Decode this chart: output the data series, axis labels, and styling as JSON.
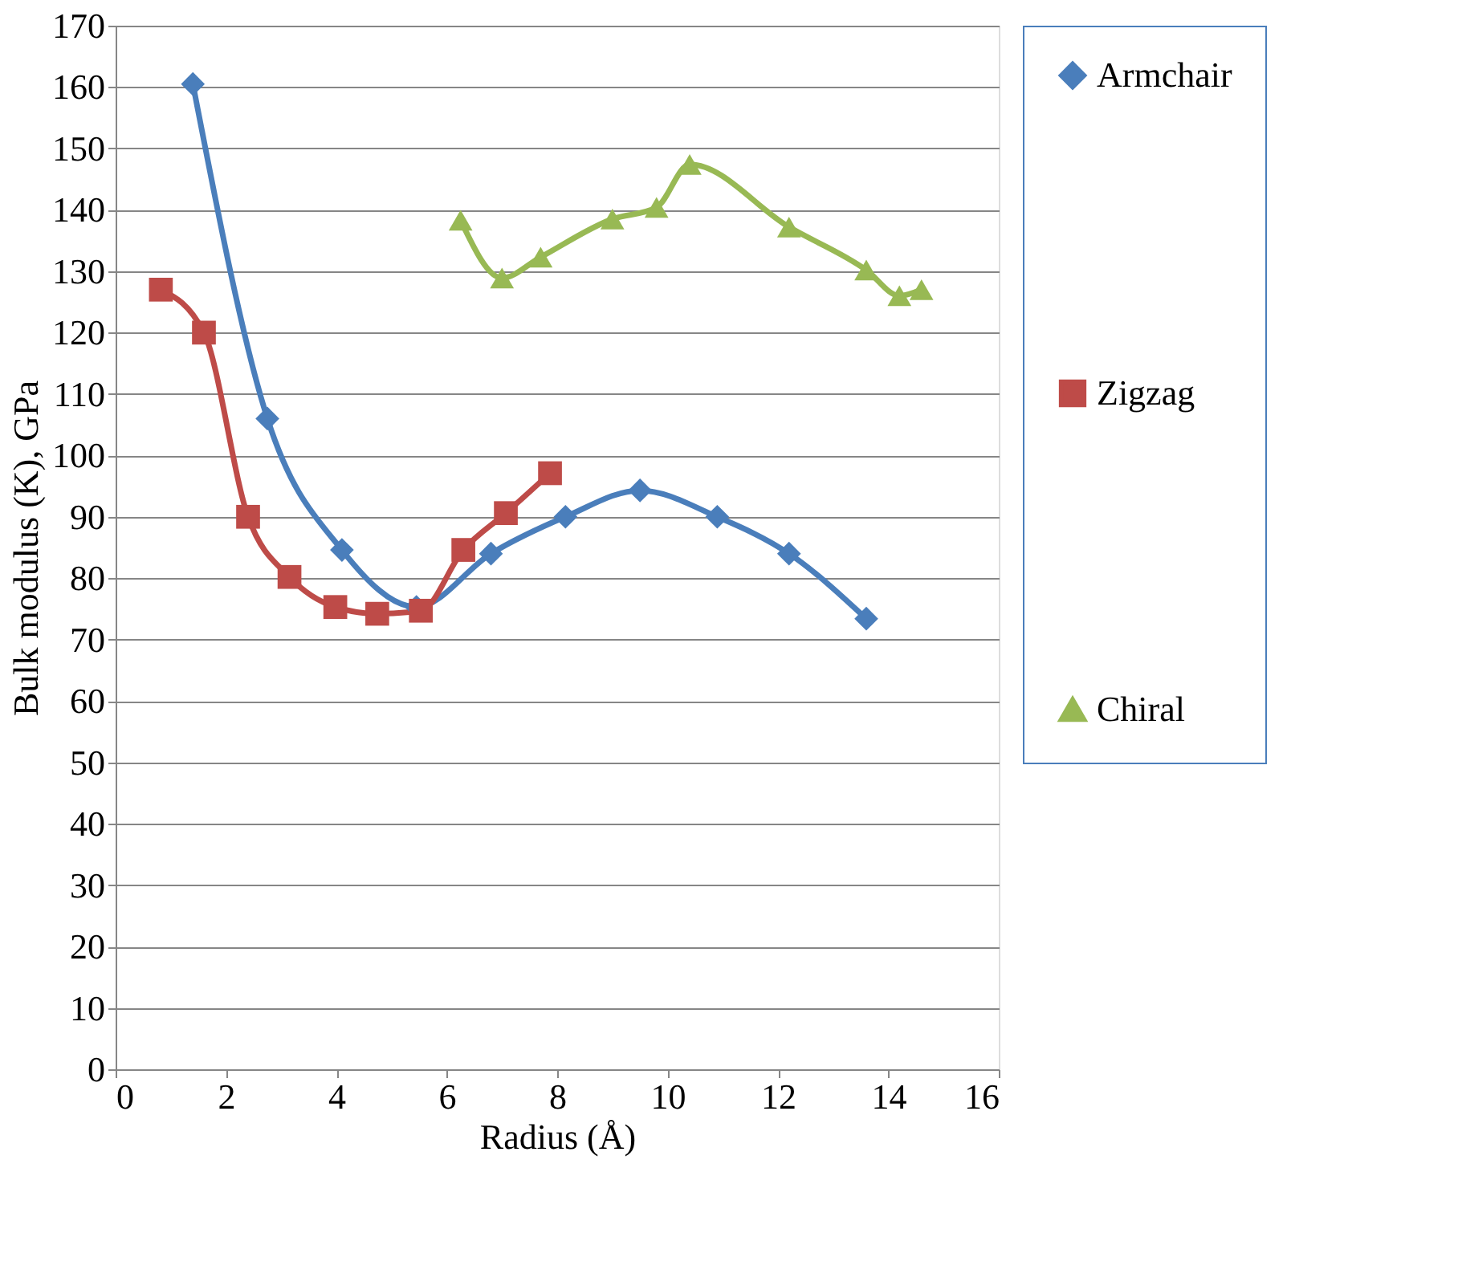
{
  "chart_data": {
    "type": "line",
    "xlabel": "Radius (Å)",
    "ylabel": "Bulk modulus (K), GPa",
    "xlim": [
      0,
      16
    ],
    "xticks": [
      0,
      2,
      4,
      6,
      8,
      10,
      12,
      14,
      16
    ],
    "ylim": [
      0,
      170
    ],
    "yticks": [
      0,
      10,
      20,
      30,
      40,
      50,
      60,
      70,
      80,
      90,
      100,
      110,
      120,
      130,
      140,
      150,
      160,
      170
    ],
    "grid": "y",
    "legend": "right",
    "series": [
      {
        "name": "Armchair",
        "color": "#4a7ebb",
        "marker": "diamond",
        "x": [
          1.4,
          2.75,
          4.1,
          5.45,
          6.8,
          8.15,
          9.5,
          10.9,
          12.2,
          13.6
        ],
        "values": [
          160.5,
          106,
          84.6,
          75.3,
          84,
          90,
          94.3,
          90,
          84,
          73.4
        ]
      },
      {
        "name": "Zigzag",
        "color": "#be4b48",
        "marker": "square",
        "x": [
          0.82,
          1.6,
          2.4,
          3.15,
          3.98,
          4.74,
          5.53,
          6.3,
          7.07,
          7.87
        ],
        "values": [
          127,
          120,
          90,
          80.2,
          75.3,
          74.2,
          74.7,
          84.6,
          90.6,
          97.1
        ]
      },
      {
        "name": "Chiral",
        "color": "#98b954",
        "marker": "triangle",
        "x": [
          6.25,
          7.0,
          7.7,
          9.0,
          9.8,
          10.4,
          12.2,
          13.6,
          14.2,
          14.6
        ],
        "values": [
          138.3,
          128.9,
          132.3,
          138.5,
          140.4,
          147.4,
          137.2,
          130.2,
          126,
          127
        ]
      }
    ]
  }
}
